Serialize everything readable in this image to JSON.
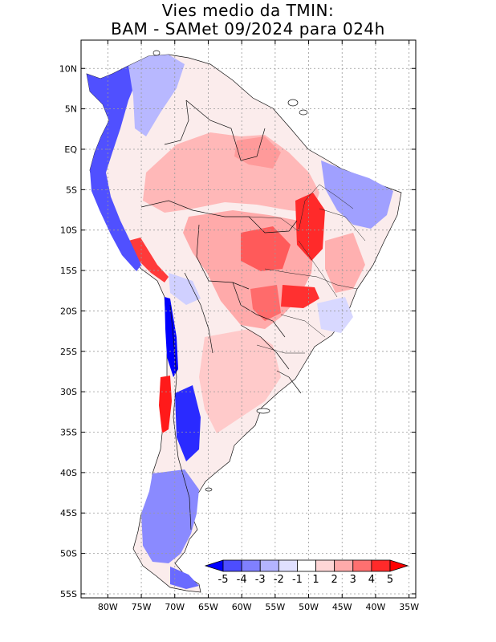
{
  "title": {
    "line1": "Vies medio da TMIN:",
    "line2": "BAM - SAMet 09/2024  para 024h"
  },
  "map": {
    "lat_labels": [
      "10N",
      "5N",
      "EQ",
      "5S",
      "10S",
      "15S",
      "20S",
      "25S",
      "30S",
      "35S",
      "40S",
      "45S",
      "50S",
      "55S"
    ],
    "lat_values": [
      10,
      5,
      0,
      -5,
      -10,
      -15,
      -20,
      -25,
      -30,
      -35,
      -40,
      -45,
      -50,
      -55
    ],
    "lon_labels": [
      "80W",
      "75W",
      "70W",
      "65W",
      "60W",
      "55W",
      "50W",
      "45W",
      "40W",
      "35W"
    ],
    "lon_values": [
      -80,
      -75,
      -70,
      -65,
      -60,
      -55,
      -50,
      -45,
      -40,
      -35
    ],
    "lat_range": [
      -55.5,
      13.5
    ],
    "lon_range": [
      -84,
      -34
    ]
  },
  "colorbar": {
    "labels": [
      "-5",
      "-4",
      "-3",
      "-2",
      "-1",
      "1",
      "2",
      "3",
      "4",
      "5"
    ],
    "colors": [
      "#0000ff",
      "#4d4dff",
      "#8080ff",
      "#b3b3ff",
      "#e0e0ff",
      "#ffffff",
      "#ffd6d6",
      "#ffaaaa",
      "#ff7070",
      "#ff2a2a",
      "#ff0000"
    ]
  }
}
